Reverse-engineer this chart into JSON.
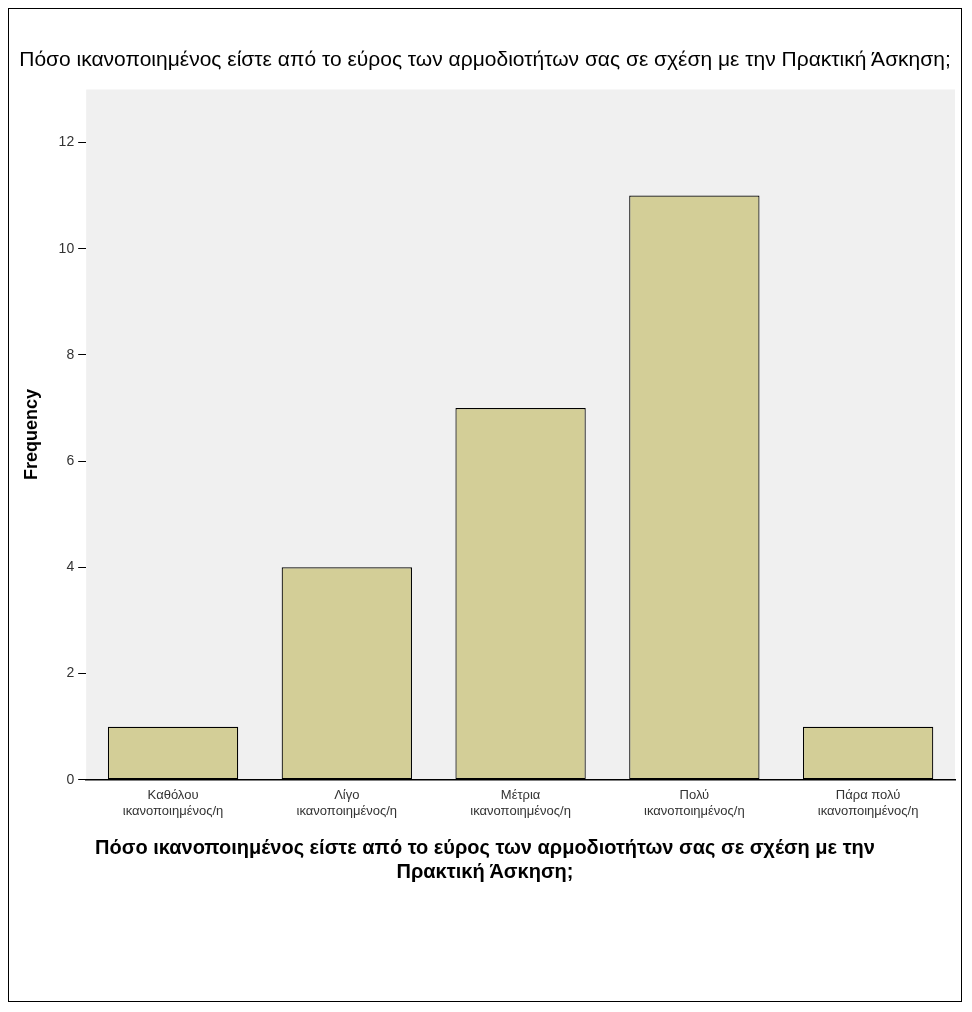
{
  "chart_data": {
    "type": "bar",
    "title": "Πόσο ικανοποιημένος είστε από το εύρος των αρμοδιοτήτων σας σε σχέση με την Πρακτική Άσκηση;",
    "xlabel": "Πόσο ικανοποιημένος είστε από το εύρος των αρμοδιοτήτων σας σε σχέση με την Πρακτική Άσκηση;",
    "ylabel": "Frequency",
    "categories": [
      "Καθόλου ικανοποιημένος/η",
      "Λίγο ικανοποιημένος/η",
      "Μέτρια ικανοποιημένος/η",
      "Πολύ ικανοποιημένος/η",
      "Πάρα πολύ ικανοποιημένος/η"
    ],
    "values": [
      1,
      4,
      7,
      11,
      1
    ],
    "color": "#d3ce97",
    "ylim": [
      0,
      13
    ],
    "yticks": [
      0,
      2,
      4,
      6,
      8,
      10,
      12
    ],
    "grid": false,
    "legend": false
  }
}
